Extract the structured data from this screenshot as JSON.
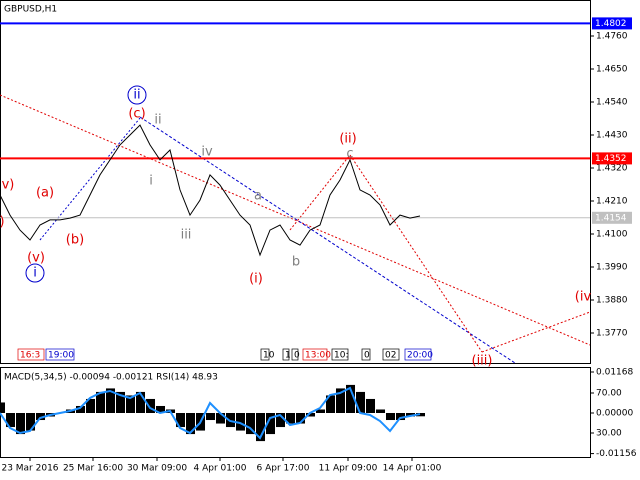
{
  "chart_data": [
    {
      "type": "line",
      "title": "GBPUSD,H1",
      "x": [
        0,
        1,
        2,
        3,
        4,
        5,
        6,
        7,
        8,
        9,
        10,
        11,
        12,
        13,
        14,
        15,
        16,
        17,
        18,
        19,
        20,
        21,
        22,
        23,
        24,
        25,
        26,
        27,
        28,
        29,
        30,
        31,
        32,
        33,
        34,
        35,
        36,
        37,
        38,
        39,
        40,
        41,
        42
      ],
      "series": [
        {
          "color": "#000000",
          "values": [
            1.423,
            1.4163,
            1.4113,
            1.408,
            1.413,
            1.4147,
            1.4147,
            1.4153,
            1.4163,
            1.423,
            1.4297,
            1.4347,
            1.4397,
            1.443,
            1.4463,
            1.4397,
            1.4347,
            1.438,
            1.4247,
            1.4163,
            1.4213,
            1.4297,
            1.4263,
            1.4213,
            1.4163,
            1.413,
            1.403,
            1.4113,
            1.413,
            1.408,
            1.4063,
            1.4113,
            1.413,
            1.423,
            1.428,
            1.4347,
            1.4247,
            1.423,
            1.4197,
            1.413,
            1.4163,
            1.4153,
            1.416
          ]
        }
      ],
      "xlim": [
        0,
        59
      ],
      "ylim": [
        1.367,
        1.488
      ],
      "yticks": [
        {
          "value": 1.476,
          "label": "1.4760"
        },
        {
          "value": 1.465,
          "label": "1.4650"
        },
        {
          "value": 1.454,
          "label": "1.4540"
        },
        {
          "value": 1.443,
          "label": "1.4430"
        },
        {
          "value": 1.432,
          "label": "1.4320"
        },
        {
          "value": 1.421,
          "label": "1.4210"
        },
        {
          "value": 1.41,
          "label": "1.4100"
        },
        {
          "value": 1.399,
          "label": "1.3990"
        },
        {
          "value": 1.388,
          "label": "1.3880"
        },
        {
          "value": 1.377,
          "label": "1.3770"
        }
      ],
      "levels": [
        {
          "value": 1.4802,
          "color": "#0000ff"
        },
        {
          "value": 1.4352,
          "color": "#ff0000"
        },
        {
          "value": 1.4154,
          "color": "#c0c0c0"
        }
      ],
      "annotations": [
        {
          "text": "v)",
          "color": "#e00000"
        },
        {
          "text": ")",
          "color": "#e00000"
        },
        {
          "text": "(a)",
          "color": "#e00000"
        },
        {
          "text": "(b)",
          "color": "#e00000"
        },
        {
          "text": "(v)",
          "color": "#e00000"
        },
        {
          "text": "i",
          "color": "#0000cc"
        },
        {
          "text": "ii",
          "color": "#0000cc"
        },
        {
          "text": "(c)",
          "color": "#e00000"
        },
        {
          "text": "ii",
          "color": "#808080"
        },
        {
          "text": "i",
          "color": "#808080"
        },
        {
          "text": "iii",
          "color": "#808080"
        },
        {
          "text": "iv",
          "color": "#808080"
        },
        {
          "text": "a",
          "color": "#808080"
        },
        {
          "text": "b",
          "color": "#808080"
        },
        {
          "text": "(i)",
          "color": "#e00000"
        },
        {
          "text": "(ii)",
          "color": "#e00000"
        },
        {
          "text": "c",
          "color": "#808080"
        },
        {
          "text": "(iii)",
          "color": "#e00000"
        },
        {
          "text": "(iv",
          "color": "#e00000"
        }
      ],
      "time_labels": [
        "16:3",
        "19:00",
        "10",
        "1",
        "0",
        "13:00",
        "10:",
        "0",
        "02",
        "20:00"
      ]
    },
    {
      "type": "bar",
      "title": "MACD(5,34,5) -0.00094 -0.00121 RSI(14) 48.93",
      "x": [
        0,
        1,
        2,
        3,
        4,
        5,
        6,
        7,
        8,
        9,
        10,
        11,
        12,
        13,
        14,
        15,
        16,
        17,
        18,
        19,
        20,
        21,
        22,
        23,
        24,
        25,
        26,
        27,
        28,
        29,
        30,
        31,
        32,
        33,
        34,
        35,
        36,
        37,
        38,
        39,
        40,
        41,
        42
      ],
      "series": [
        {
          "color": "#000000",
          "values": [
            0.003,
            -0.004,
            -0.006,
            -0.005,
            -0.002,
            -0.001,
            0.0,
            0.001,
            0.002,
            0.004,
            0.006,
            0.007,
            0.006,
            0.005,
            0.006,
            0.004,
            0.002,
            0.001,
            -0.004,
            -0.006,
            -0.005,
            -0.002,
            -0.003,
            -0.004,
            -0.005,
            -0.006,
            -0.008,
            -0.006,
            -0.004,
            -0.003,
            -0.003,
            -0.001,
            0.001,
            0.005,
            0.007,
            0.008,
            0.006,
            0.004,
            0.001,
            -0.002,
            -0.002,
            -0.001,
            -0.00094
          ]
        },
        {
          "color": "#1e90ff",
          "axis": "y2",
          "values": [
            50,
            35,
            30,
            32,
            45,
            48,
            50,
            52,
            55,
            65,
            70,
            72,
            68,
            65,
            70,
            55,
            50,
            52,
            35,
            30,
            40,
            60,
            50,
            42,
            40,
            35,
            25,
            45,
            48,
            38,
            40,
            50,
            55,
            68,
            70,
            75,
            50,
            48,
            42,
            32,
            45,
            47,
            48.93
          ]
        }
      ],
      "xlim": [
        0,
        59
      ],
      "ylim": [
        -0.01253,
        0.0131
      ],
      "y2lim": [
        6,
        96
      ],
      "yticks": [
        {
          "value": 0.01168,
          "label": "0.01168"
        },
        {
          "value": 0,
          "label": "0.00000"
        },
        {
          "value": -0.01156,
          "label": "-0.01156"
        }
      ],
      "y2ticks": [
        {
          "value": 70,
          "label": "70.00"
        },
        {
          "value": 30,
          "label": "30.00"
        }
      ],
      "xticks": [
        {
          "value": 3,
          "label": "23 Mar 2016"
        },
        {
          "value": 9.3,
          "label": "25 Mar 16:00"
        },
        {
          "value": 15.7,
          "label": "30 Mar 09:00"
        },
        {
          "value": 22,
          "label": "4 Apr 01:00"
        },
        {
          "value": 28.3,
          "label": "6 Apr 17:00"
        },
        {
          "value": 34.8,
          "label": "11 Apr 09:00"
        },
        {
          "value": 41.2,
          "label": "14 Apr 01:00"
        }
      ]
    }
  ]
}
